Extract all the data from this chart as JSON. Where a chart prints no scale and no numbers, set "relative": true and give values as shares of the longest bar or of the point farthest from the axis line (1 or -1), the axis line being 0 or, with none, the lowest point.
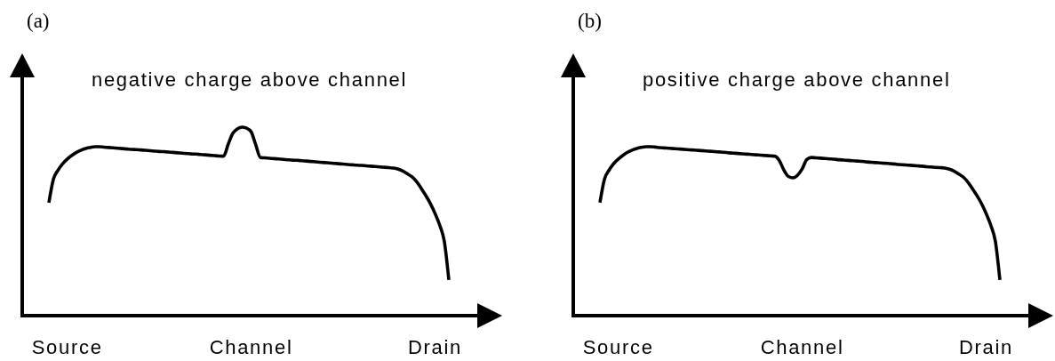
{
  "chart_data": [
    {
      "type": "line",
      "title": "(a)",
      "annotations": [
        "negative charge above channel"
      ],
      "relative": true,
      "color": "#000000",
      "categories": [
        null,
        null,
        null,
        null,
        "Source",
        null,
        null,
        null,
        null,
        null,
        null,
        null,
        null,
        null,
        null,
        null,
        null,
        null,
        null,
        null,
        null,
        null,
        null,
        null,
        null,
        null,
        null,
        null,
        null,
        null,
        null,
        null,
        null,
        null,
        null,
        null,
        null,
        null,
        null,
        null,
        null,
        null,
        null,
        null,
        "Channel",
        null,
        null,
        null,
        null,
        null,
        null,
        null,
        null,
        null,
        null,
        null,
        null,
        null,
        null,
        null,
        null,
        null,
        null,
        null,
        null,
        null,
        null,
        null,
        null,
        null,
        null,
        null,
        null,
        null,
        null,
        null,
        null,
        null,
        null,
        null,
        null,
        null,
        null,
        null,
        "Drain",
        null,
        null,
        null
      ],
      "values": [
        0.599,
        0.725,
        0.772,
        0.806,
        0.831,
        0.85,
        0.866,
        0.878,
        0.887,
        0.892,
        0.896,
        0.896,
        0.894,
        0.892,
        0.89,
        0.888,
        0.886,
        0.884,
        0.882,
        0.881,
        0.879,
        0.877,
        0.875,
        0.873,
        0.871,
        0.87,
        0.868,
        0.866,
        0.864,
        0.862,
        0.86,
        0.858,
        0.857,
        0.855,
        0.853,
        0.851,
        0.849,
        0.847,
        0.846,
        0.909,
        0.967,
        0.991,
        1,
        0.995,
        0.975,
        0.906,
        0.839,
        0.837,
        0.835,
        0.833,
        0.831,
        0.829,
        0.827,
        0.825,
        0.824,
        0.822,
        0.82,
        0.818,
        0.816,
        0.814,
        0.812,
        0.81,
        0.808,
        0.806,
        0.804,
        0.802,
        0.8,
        0.798,
        0.797,
        0.795,
        0.793,
        0.791,
        0.789,
        0.787,
        0.785,
        0.783,
        0.777,
        0.767,
        0.752,
        0.736,
        0.71,
        0.675,
        0.637,
        0.594,
        0.542,
        0.481,
        0.396,
        0.189
      ]
    },
    {
      "type": "line",
      "title": "(b)",
      "annotations": [
        "positive charge above channel"
      ],
      "relative": true,
      "color": "#000000",
      "categories": [
        null,
        null,
        null,
        null,
        "Source",
        null,
        null,
        null,
        null,
        null,
        null,
        null,
        null,
        null,
        null,
        null,
        null,
        null,
        null,
        null,
        null,
        null,
        null,
        null,
        null,
        null,
        null,
        null,
        null,
        null,
        null,
        null,
        null,
        null,
        null,
        null,
        null,
        null,
        null,
        null,
        null,
        null,
        null,
        null,
        "Channel",
        null,
        null,
        null,
        null,
        null,
        null,
        null,
        null,
        null,
        null,
        null,
        null,
        null,
        null,
        null,
        null,
        null,
        null,
        null,
        null,
        null,
        null,
        null,
        null,
        null,
        null,
        null,
        null,
        null,
        null,
        null,
        null,
        null,
        null,
        null,
        null,
        null,
        null,
        null,
        "Drain",
        null,
        null,
        null
      ],
      "values": [
        0.669,
        0.809,
        0.862,
        0.9,
        0.927,
        0.949,
        0.967,
        0.98,
        0.99,
        0.996,
        1,
        1,
        0.998,
        0.995,
        0.993,
        0.991,
        0.989,
        0.987,
        0.985,
        0.983,
        0.981,
        0.979,
        0.977,
        0.975,
        0.973,
        0.971,
        0.969,
        0.967,
        0.964,
        0.962,
        0.96,
        0.958,
        0.956,
        0.954,
        0.952,
        0.95,
        0.948,
        0.946,
        0.944,
        0.919,
        0.863,
        0.824,
        0.816,
        0.832,
        0.869,
        0.924,
        0.936,
        0.934,
        0.932,
        0.93,
        0.928,
        0.926,
        0.923,
        0.921,
        0.919,
        0.917,
        0.915,
        0.913,
        0.91,
        0.908,
        0.906,
        0.904,
        0.902,
        0.9,
        0.898,
        0.895,
        0.893,
        0.891,
        0.889,
        0.887,
        0.885,
        0.882,
        0.88,
        0.878,
        0.876,
        0.874,
        0.867,
        0.856,
        0.839,
        0.821,
        0.792,
        0.753,
        0.711,
        0.663,
        0.605,
        0.537,
        0.442,
        0.211
      ]
    }
  ]
}
